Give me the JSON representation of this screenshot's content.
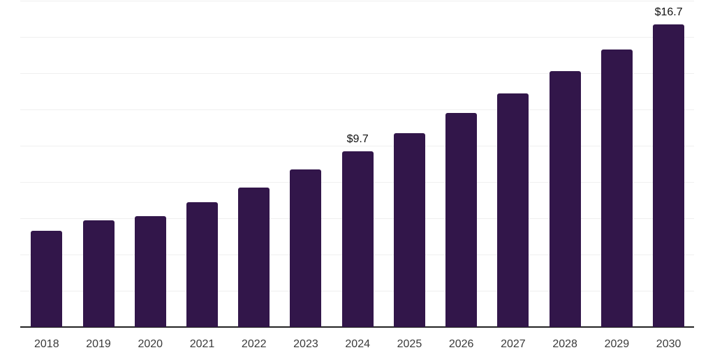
{
  "chart_data": {
    "type": "bar",
    "title": "",
    "xlabel": "",
    "ylabel": "",
    "categories": [
      "2018",
      "2019",
      "2020",
      "2021",
      "2022",
      "2023",
      "2024",
      "2025",
      "2026",
      "2027",
      "2028",
      "2029",
      "2030"
    ],
    "values": [
      5.3,
      5.9,
      6.1,
      6.9,
      7.7,
      8.7,
      9.7,
      10.7,
      11.8,
      12.9,
      14.1,
      15.3,
      16.7
    ],
    "annotations": [
      {
        "category": "2024",
        "text": "$9.7"
      },
      {
        "category": "2030",
        "text": "$16.7"
      }
    ],
    "ylim": [
      0,
      18
    ],
    "grid_step": 2,
    "grid": true,
    "legend": false,
    "y_axis_labels_visible": false,
    "colors": {
      "bar": "#32164a",
      "gridline": "#efefef",
      "axis_line": "#222222",
      "tick_label": "#3a3a3a",
      "data_label": "#111111",
      "background": "#ffffff"
    }
  }
}
